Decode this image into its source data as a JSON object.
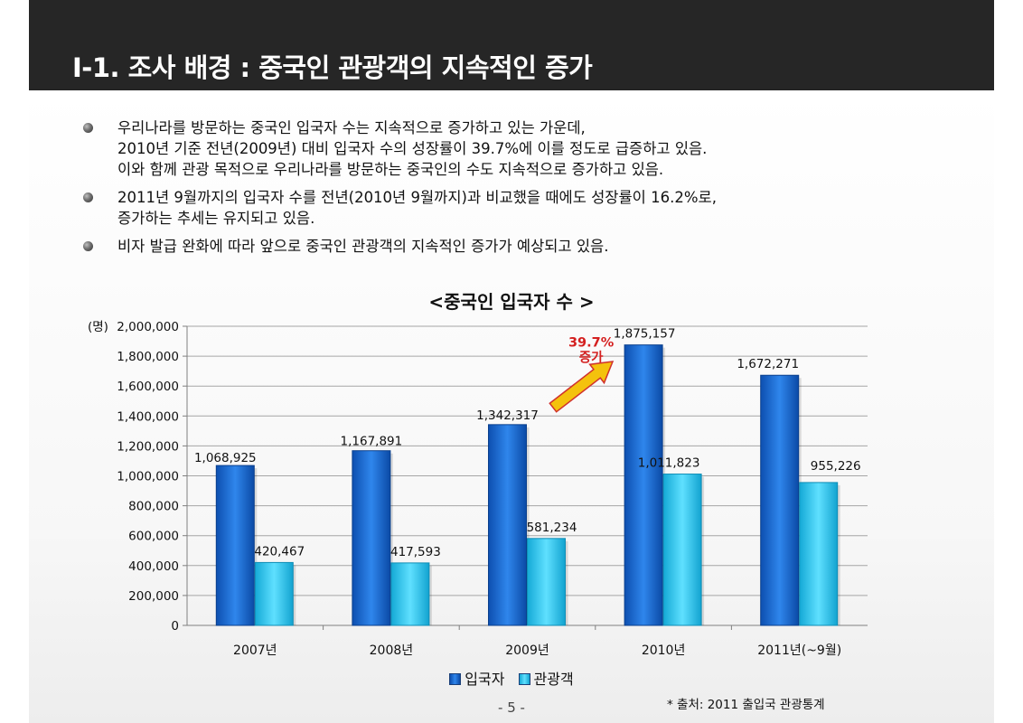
{
  "header": {
    "title": "Ⅰ-1. 조사 배경 : 중국인 관광객의 지속적인 증가"
  },
  "bullets": [
    {
      "lines": [
        "우리나라를 방문하는 중국인 입국자 수는 지속적으로 증가하고 있는 가운데,",
        "2010년 기준 전년(2009년) 대비 입국자 수의 성장률이 39.7%에 이를 정도로 급증하고 있음.",
        "이와 함께 관광 목적으로 우리나라를 방문하는 중국인의 수도 지속적으로 증가하고 있음."
      ]
    },
    {
      "lines": [
        "2011년 9월까지의 입국자 수를 전년(2010년 9월까지)과 비교했을 때에도 성장률이 16.2%로,",
        "증가하는 추세는 유지되고 있음."
      ]
    },
    {
      "lines": [
        "비자 발급 완화에 따라 앞으로 중국인 관광객의 지속적인 증가가 예상되고 있음."
      ]
    }
  ],
  "chart_data": {
    "type": "bar",
    "title": "<중국인 입국자 수 >",
    "ylabel": "(명)",
    "ylim": [
      0,
      2000000
    ],
    "ytick_step": 200000,
    "grid": true,
    "legend_position": "bottom",
    "categories": [
      "2007년",
      "2008년",
      "2009년",
      "2010년",
      "2011년(~9월)"
    ],
    "series": [
      {
        "name": "입국자",
        "color": "#1f6fd6",
        "values": [
          1068925,
          1167891,
          1342317,
          1875157,
          1672271
        ]
      },
      {
        "name": "관광객",
        "color": "#2cc8ee",
        "values": [
          420467,
          417593,
          581234,
          1011823,
          955226
        ]
      }
    ],
    "annotation": {
      "text_line1": "39.7%",
      "text_line2": "증가",
      "color": "#d42020",
      "arrow_color": "#f4c20d"
    }
  },
  "footer": {
    "source": "* 출처: 2011 출입국 관광통계",
    "page": "- 5 -"
  }
}
